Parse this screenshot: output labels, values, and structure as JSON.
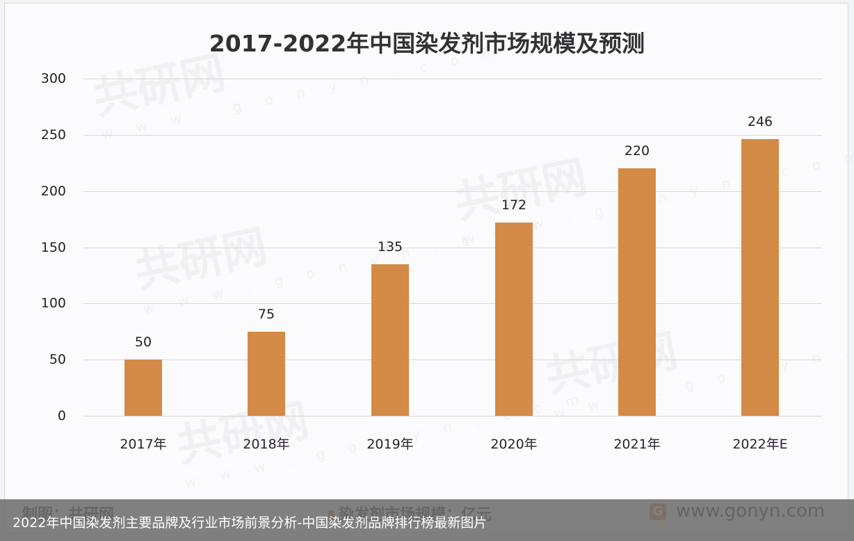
{
  "chart_data": {
    "type": "bar",
    "title": "2017-2022年中国染发剂市场规模及预测",
    "categories": [
      "2017年",
      "2018年",
      "2019年",
      "2020年",
      "2021年",
      "2022年E"
    ],
    "series": [
      {
        "name": "染发剂市场规模：亿元",
        "values": [
          50,
          75,
          135,
          172,
          220,
          246
        ],
        "color": "#d38b47"
      }
    ],
    "data_labels": [
      "50",
      "75",
      "135",
      "172",
      "220",
      "246"
    ],
    "xlabel": "",
    "ylabel": "",
    "ylim": [
      0,
      300
    ],
    "yticks": [
      "0",
      "50",
      "100",
      "150",
      "200",
      "250",
      "300"
    ],
    "grid": true,
    "legend_position": "bottom"
  },
  "footer": {
    "source": "制图：共研网",
    "legend_label": "染发剂市场规模：亿元",
    "website": "www.gonyn.com",
    "logo_glyph": "G"
  },
  "watermark": {
    "brand": "共研网",
    "url": "w w w . g o n y n . c o m"
  },
  "caption": "2022年中国染发剂主要品牌及行业市场前景分析-中国染发剂品牌排行榜最新图片"
}
